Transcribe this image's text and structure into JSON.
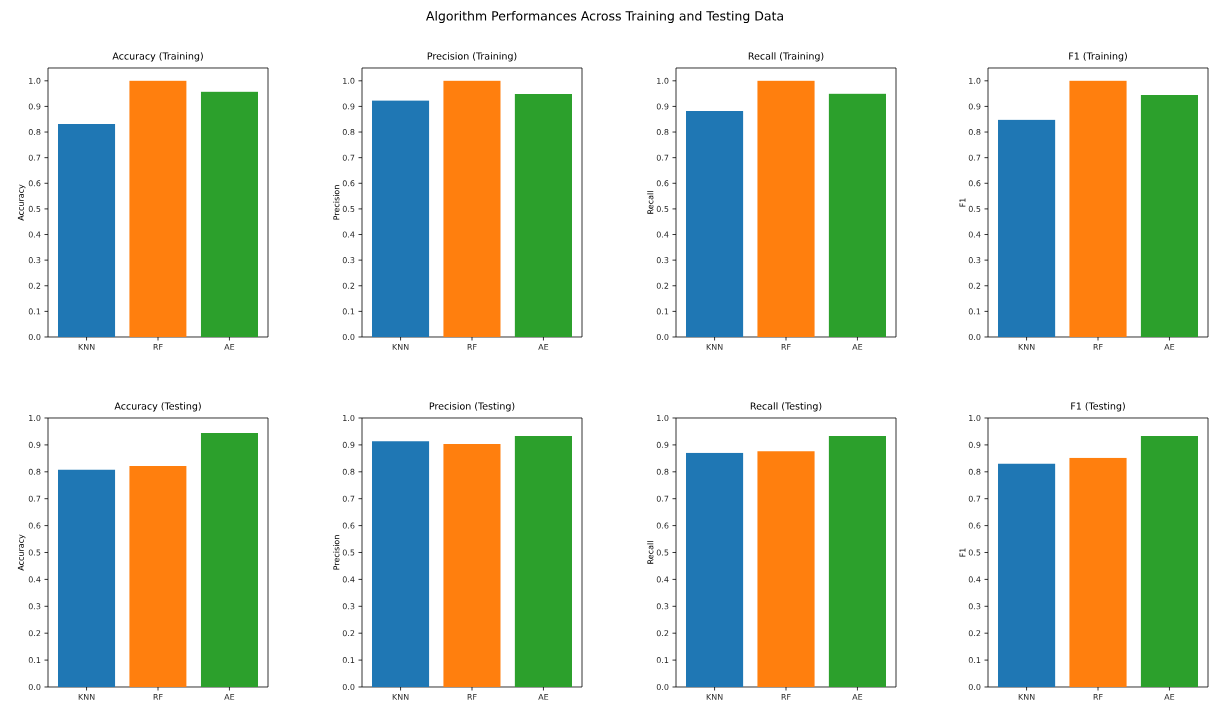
{
  "chart_data": [
    {
      "type": "bar",
      "title": "Accuracy (Training)",
      "ylabel": "Accuracy",
      "annotations": [
        "Algorithm Performances Across Training and Testing Data"
      ],
      "categories": [
        "KNN",
        "RF",
        "AE"
      ],
      "values": [
        0.831,
        1.0,
        0.957
      ],
      "colors": [
        "#1f77b4",
        "#ff7f0e",
        "#2ca02c"
      ],
      "ylim": [
        0,
        1.05
      ],
      "yticks": [
        {
          "value": 0,
          "label": "0.0"
        },
        {
          "value": 0.1,
          "label": "0.1"
        },
        {
          "value": 0.2,
          "label": "0.2"
        },
        {
          "value": 0.3,
          "label": "0.3"
        },
        {
          "value": 0.4,
          "label": "0.4"
        },
        {
          "value": 0.5,
          "label": "0.5"
        },
        {
          "value": 0.6,
          "label": "0.6"
        },
        {
          "value": 0.7,
          "label": "0.7"
        },
        {
          "value": 0.8,
          "label": "0.8"
        },
        {
          "value": 0.9,
          "label": "0.9"
        },
        {
          "value": 1,
          "label": "1.0"
        }
      ]
    },
    {
      "type": "bar",
      "title": "Precision (Training)",
      "ylabel": "Precision",
      "categories": [
        "KNN",
        "RF",
        "AE"
      ],
      "values": [
        0.923,
        1.0,
        0.948
      ],
      "colors": [
        "#1f77b4",
        "#ff7f0e",
        "#2ca02c"
      ],
      "ylim": [
        0,
        1.05
      ],
      "yticks": [
        {
          "value": 0,
          "label": "0.0"
        },
        {
          "value": 0.1,
          "label": "0.1"
        },
        {
          "value": 0.2,
          "label": "0.2"
        },
        {
          "value": 0.3,
          "label": "0.3"
        },
        {
          "value": 0.4,
          "label": "0.4"
        },
        {
          "value": 0.5,
          "label": "0.5"
        },
        {
          "value": 0.6,
          "label": "0.6"
        },
        {
          "value": 0.7,
          "label": "0.7"
        },
        {
          "value": 0.8,
          "label": "0.8"
        },
        {
          "value": 0.9,
          "label": "0.9"
        },
        {
          "value": 1,
          "label": "1.0"
        }
      ]
    },
    {
      "type": "bar",
      "title": "Recall (Training)",
      "ylabel": "Recall",
      "categories": [
        "KNN",
        "RF",
        "AE"
      ],
      "values": [
        0.882,
        1.0,
        0.949
      ],
      "colors": [
        "#1f77b4",
        "#ff7f0e",
        "#2ca02c"
      ],
      "ylim": [
        0,
        1.05
      ],
      "yticks": [
        {
          "value": 0,
          "label": "0.0"
        },
        {
          "value": 0.1,
          "label": "0.1"
        },
        {
          "value": 0.2,
          "label": "0.2"
        },
        {
          "value": 0.3,
          "label": "0.3"
        },
        {
          "value": 0.4,
          "label": "0.4"
        },
        {
          "value": 0.5,
          "label": "0.5"
        },
        {
          "value": 0.6,
          "label": "0.6"
        },
        {
          "value": 0.7,
          "label": "0.7"
        },
        {
          "value": 0.8,
          "label": "0.8"
        },
        {
          "value": 0.9,
          "label": "0.9"
        },
        {
          "value": 1,
          "label": "1.0"
        }
      ]
    },
    {
      "type": "bar",
      "title": "F1 (Training)",
      "ylabel": "F1",
      "categories": [
        "KNN",
        "RF",
        "AE"
      ],
      "values": [
        0.848,
        1.0,
        0.945
      ],
      "colors": [
        "#1f77b4",
        "#ff7f0e",
        "#2ca02c"
      ],
      "ylim": [
        0,
        1.05
      ],
      "yticks": [
        {
          "value": 0,
          "label": "0.0"
        },
        {
          "value": 0.1,
          "label": "0.1"
        },
        {
          "value": 0.2,
          "label": "0.2"
        },
        {
          "value": 0.3,
          "label": "0.3"
        },
        {
          "value": 0.4,
          "label": "0.4"
        },
        {
          "value": 0.5,
          "label": "0.5"
        },
        {
          "value": 0.6,
          "label": "0.6"
        },
        {
          "value": 0.7,
          "label": "0.7"
        },
        {
          "value": 0.8,
          "label": "0.8"
        },
        {
          "value": 0.9,
          "label": "0.9"
        },
        {
          "value": 1,
          "label": "1.0"
        }
      ]
    },
    {
      "type": "bar",
      "title": "Accuracy (Testing)",
      "ylabel": "Accuracy",
      "categories": [
        "KNN",
        "RF",
        "AE"
      ],
      "values": [
        0.808,
        0.822,
        0.944
      ],
      "colors": [
        "#1f77b4",
        "#ff7f0e",
        "#2ca02c"
      ],
      "ylim": [
        0,
        1.0
      ],
      "yticks": [
        {
          "value": 0,
          "label": "0.0"
        },
        {
          "value": 0.1,
          "label": "0.1"
        },
        {
          "value": 0.2,
          "label": "0.2"
        },
        {
          "value": 0.3,
          "label": "0.3"
        },
        {
          "value": 0.4,
          "label": "0.4"
        },
        {
          "value": 0.5,
          "label": "0.5"
        },
        {
          "value": 0.6,
          "label": "0.6"
        },
        {
          "value": 0.7,
          "label": "0.7"
        },
        {
          "value": 0.8,
          "label": "0.8"
        },
        {
          "value": 0.9,
          "label": "0.9"
        },
        {
          "value": 1,
          "label": "1.0"
        }
      ]
    },
    {
      "type": "bar",
      "title": "Precision (Testing)",
      "ylabel": "Precision",
      "categories": [
        "KNN",
        "RF",
        "AE"
      ],
      "values": [
        0.914,
        0.903,
        0.933
      ],
      "colors": [
        "#1f77b4",
        "#ff7f0e",
        "#2ca02c"
      ],
      "ylim": [
        0,
        1.0
      ],
      "yticks": [
        {
          "value": 0,
          "label": "0.0"
        },
        {
          "value": 0.1,
          "label": "0.1"
        },
        {
          "value": 0.2,
          "label": "0.2"
        },
        {
          "value": 0.3,
          "label": "0.3"
        },
        {
          "value": 0.4,
          "label": "0.4"
        },
        {
          "value": 0.5,
          "label": "0.5"
        },
        {
          "value": 0.6,
          "label": "0.6"
        },
        {
          "value": 0.7,
          "label": "0.7"
        },
        {
          "value": 0.8,
          "label": "0.8"
        },
        {
          "value": 0.9,
          "label": "0.9"
        },
        {
          "value": 1,
          "label": "1.0"
        }
      ]
    },
    {
      "type": "bar",
      "title": "Recall (Testing)",
      "ylabel": "Recall",
      "categories": [
        "KNN",
        "RF",
        "AE"
      ],
      "values": [
        0.871,
        0.876,
        0.933
      ],
      "colors": [
        "#1f77b4",
        "#ff7f0e",
        "#2ca02c"
      ],
      "ylim": [
        0,
        1.0
      ],
      "yticks": [
        {
          "value": 0,
          "label": "0.0"
        },
        {
          "value": 0.1,
          "label": "0.1"
        },
        {
          "value": 0.2,
          "label": "0.2"
        },
        {
          "value": 0.3,
          "label": "0.3"
        },
        {
          "value": 0.4,
          "label": "0.4"
        },
        {
          "value": 0.5,
          "label": "0.5"
        },
        {
          "value": 0.6,
          "label": "0.6"
        },
        {
          "value": 0.7,
          "label": "0.7"
        },
        {
          "value": 0.8,
          "label": "0.8"
        },
        {
          "value": 0.9,
          "label": "0.9"
        },
        {
          "value": 1,
          "label": "1.0"
        }
      ]
    },
    {
      "type": "bar",
      "title": "F1 (Testing)",
      "ylabel": "F1",
      "categories": [
        "KNN",
        "RF",
        "AE"
      ],
      "values": [
        0.83,
        0.852,
        0.933
      ],
      "colors": [
        "#1f77b4",
        "#ff7f0e",
        "#2ca02c"
      ],
      "ylim": [
        0,
        1.0
      ],
      "yticks": [
        {
          "value": 0,
          "label": "0.0"
        },
        {
          "value": 0.1,
          "label": "0.1"
        },
        {
          "value": 0.2,
          "label": "0.2"
        },
        {
          "value": 0.3,
          "label": "0.3"
        },
        {
          "value": 0.4,
          "label": "0.4"
        },
        {
          "value": 0.5,
          "label": "0.5"
        },
        {
          "value": 0.6,
          "label": "0.6"
        },
        {
          "value": 0.7,
          "label": "0.7"
        },
        {
          "value": 0.8,
          "label": "0.8"
        },
        {
          "value": 0.9,
          "label": "0.9"
        },
        {
          "value": 1,
          "label": "1.0"
        }
      ]
    }
  ]
}
